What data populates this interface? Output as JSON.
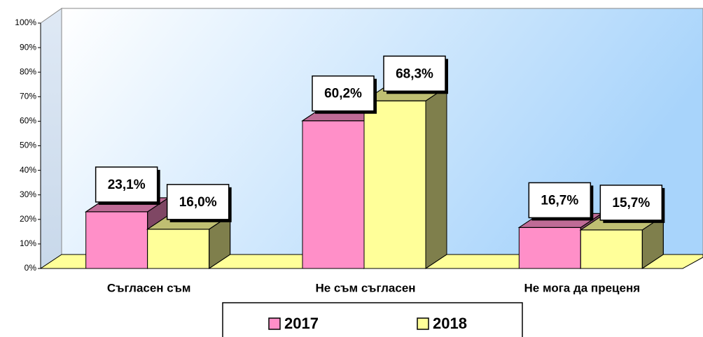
{
  "chart_data": {
    "type": "bar3d",
    "categories": [
      "Съгласен съм",
      "Не съм съгласен",
      "Не мога да преценя"
    ],
    "series": [
      {
        "name": "2017",
        "color": "#ff8fc8",
        "values": [
          23.1,
          60.2,
          16.7
        ],
        "value_labels": [
          "23,1%",
          "60,2%",
          "16,7%"
        ]
      },
      {
        "name": "2018",
        "color": "#ffff99",
        "values": [
          16.0,
          68.3,
          15.7
        ],
        "value_labels": [
          "16,0%",
          "68,3%",
          "15,7%"
        ]
      }
    ],
    "ylim": [
      0,
      100
    ],
    "yticks": [
      {
        "value": 0,
        "label": "0%"
      },
      {
        "value": 10,
        "label": "10%"
      },
      {
        "value": 20,
        "label": "20%"
      },
      {
        "value": 30,
        "label": "30%"
      },
      {
        "value": 40,
        "label": "40%"
      },
      {
        "value": 50,
        "label": "50%"
      },
      {
        "value": 60,
        "label": "60%"
      },
      {
        "value": 70,
        "label": "70%"
      },
      {
        "value": 80,
        "label": "80%"
      },
      {
        "value": 90,
        "label": "90%"
      },
      {
        "value": 100,
        "label": "100%"
      }
    ],
    "legend": "bottom"
  }
}
